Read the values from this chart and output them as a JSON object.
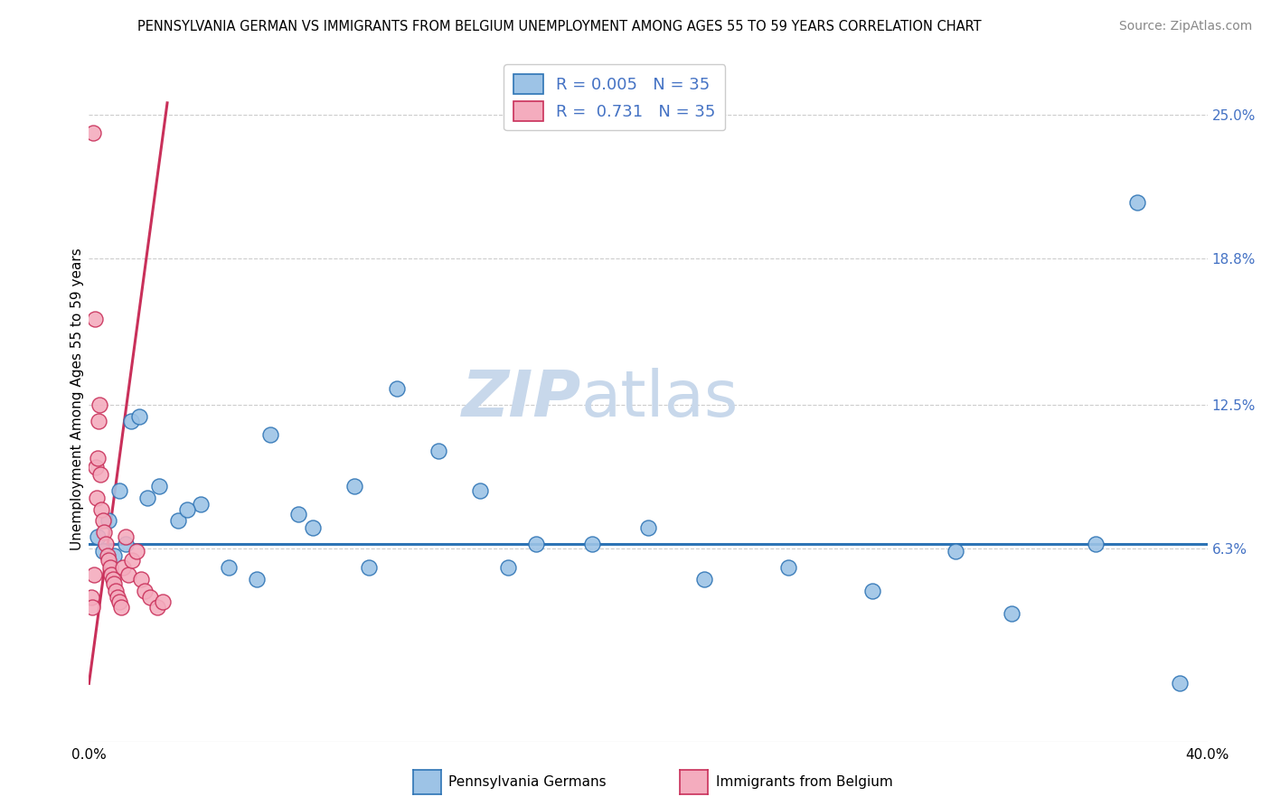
{
  "title": "PENNSYLVANIA GERMAN VS IMMIGRANTS FROM BELGIUM UNEMPLOYMENT AMONG AGES 55 TO 59 YEARS CORRELATION CHART",
  "source": "Source: ZipAtlas.com",
  "ylabel_left": "Unemployment Among Ages 55 to 59 years",
  "x_tick_labels": [
    "0.0%",
    "40.0%"
  ],
  "y_tick_labels_right": [
    "6.3%",
    "12.5%",
    "18.8%",
    "25.0%"
  ],
  "y_tick_values_right": [
    6.3,
    12.5,
    18.8,
    25.0
  ],
  "xmin": 0.0,
  "xmax": 40.0,
  "ymin": -2.0,
  "ymax": 27.5,
  "blue_color": "#9DC3E6",
  "pink_color": "#F4ACBE",
  "blue_line_color": "#2E74B5",
  "pink_line_color": "#C9305A",
  "legend_r_blue": "0.005",
  "legend_r_pink": "0.731",
  "legend_n": "35",
  "legend_label_blue": "Pennsylvania Germans",
  "legend_label_pink": "Immigrants from Belgium",
  "watermark_zip": "ZIP",
  "watermark_atlas": "atlas",
  "blue_scatter_x": [
    0.3,
    0.5,
    0.7,
    0.9,
    1.1,
    1.3,
    1.5,
    1.8,
    2.1,
    2.5,
    3.2,
    4.0,
    5.0,
    6.5,
    7.5,
    8.0,
    9.5,
    11.0,
    12.5,
    14.0,
    16.0,
    18.0,
    20.0,
    22.0,
    25.0,
    28.0,
    31.0,
    33.0,
    36.0,
    37.5,
    39.0,
    3.5,
    6.0,
    10.0,
    15.0
  ],
  "blue_scatter_y": [
    6.8,
    6.2,
    7.5,
    6.0,
    8.8,
    6.5,
    11.8,
    12.0,
    8.5,
    9.0,
    7.5,
    8.2,
    5.5,
    11.2,
    7.8,
    7.2,
    9.0,
    13.2,
    10.5,
    8.8,
    6.5,
    6.5,
    7.2,
    5.0,
    5.5,
    4.5,
    6.2,
    3.5,
    6.5,
    21.2,
    0.5,
    8.0,
    5.0,
    5.5,
    5.5
  ],
  "pink_scatter_x": [
    0.08,
    0.12,
    0.15,
    0.18,
    0.22,
    0.25,
    0.28,
    0.32,
    0.35,
    0.38,
    0.42,
    0.45,
    0.5,
    0.55,
    0.6,
    0.65,
    0.7,
    0.75,
    0.8,
    0.85,
    0.9,
    0.95,
    1.02,
    1.08,
    1.15,
    1.22,
    1.3,
    1.4,
    1.55,
    1.7,
    1.85,
    2.0,
    2.2,
    2.45,
    2.65
  ],
  "pink_scatter_y": [
    4.2,
    3.8,
    24.2,
    5.2,
    16.2,
    9.8,
    8.5,
    10.2,
    11.8,
    12.5,
    9.5,
    8.0,
    7.5,
    7.0,
    6.5,
    6.0,
    5.8,
    5.5,
    5.2,
    5.0,
    4.8,
    4.5,
    4.2,
    4.0,
    3.8,
    5.5,
    6.8,
    5.2,
    5.8,
    6.2,
    5.0,
    4.5,
    4.2,
    3.8,
    4.0
  ],
  "blue_line_x": [
    0.0,
    40.0
  ],
  "blue_line_y": [
    6.5,
    6.5
  ],
  "pink_line_x": [
    0.0,
    2.8
  ],
  "pink_line_y": [
    0.5,
    25.5
  ],
  "title_fontsize": 10.5,
  "axis_label_fontsize": 11,
  "tick_fontsize": 11,
  "source_fontsize": 10,
  "watermark_fontsize_zip": 52,
  "watermark_fontsize_atlas": 52,
  "watermark_color_zip": "#C8D8EB",
  "watermark_color_atlas": "#C8D8EB",
  "background_color": "#FFFFFF",
  "grid_color": "#CCCCCC",
  "right_axis_color": "#4472C4",
  "legend_text_color": "#4472C4",
  "scatter_size": 150,
  "scatter_linewidth": 1.0
}
